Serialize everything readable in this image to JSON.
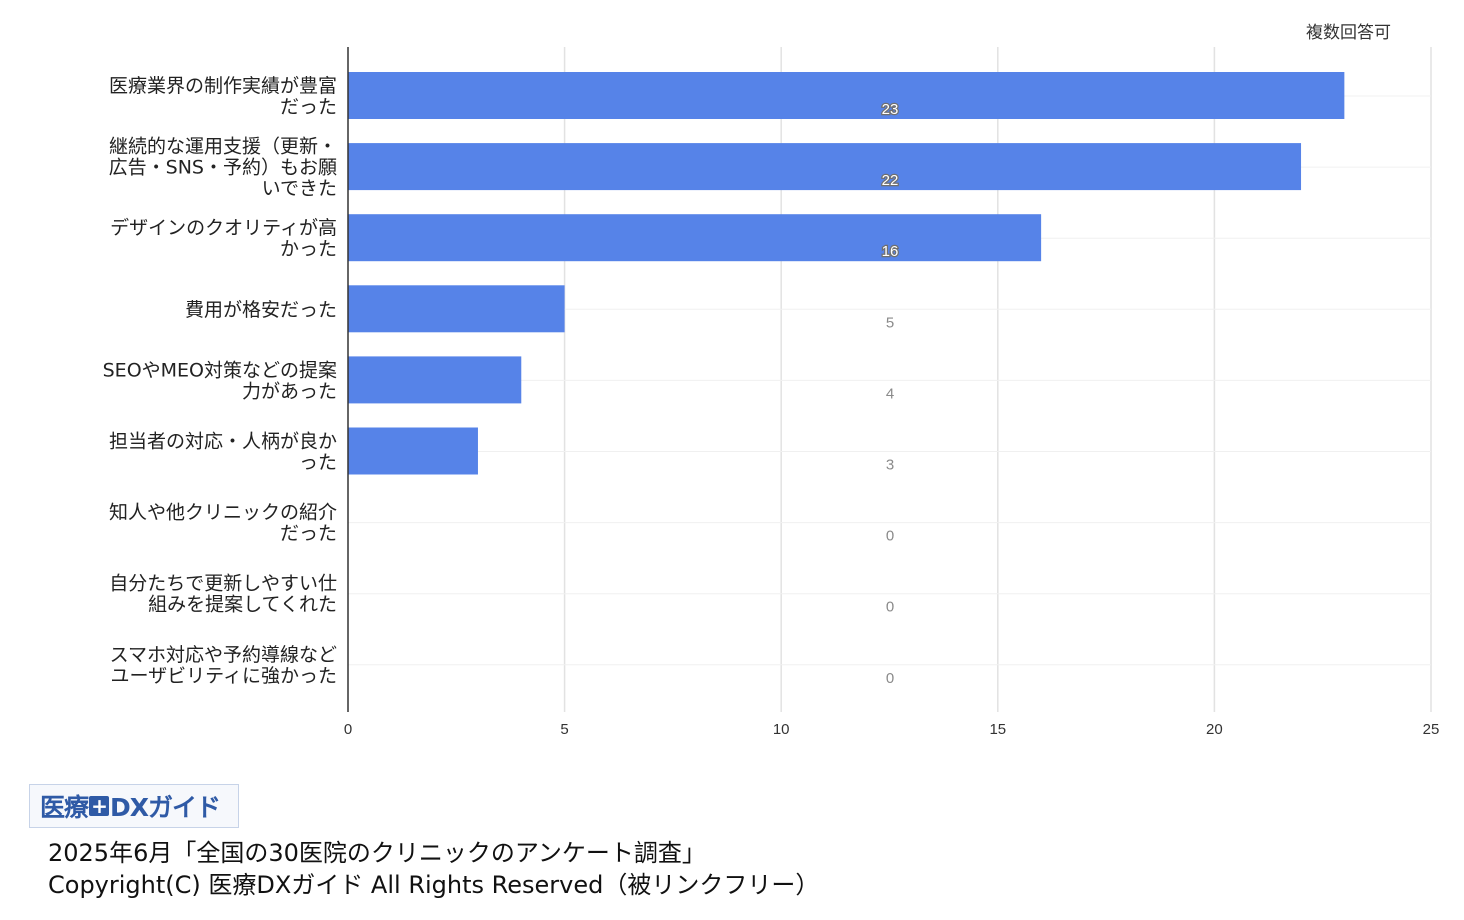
{
  "note": "複数回答可",
  "logo": {
    "part1": "医療",
    "plus": "+",
    "part2": "DXガイド"
  },
  "footer": {
    "survey": "2025年6月「全国の30医院のクリニックのアンケート調査」",
    "copyright": "Copyright(C) 医療DXガイド All Rights Reserved（被リンクフリー）"
  },
  "colors": {
    "bar": "#5683e8",
    "grid": "#e2e2e2",
    "axis": "#333333",
    "value_label_inside": "#ffffff",
    "value_label_outside": "#8a8a8a"
  },
  "chart_data": {
    "type": "bar",
    "orientation": "horizontal",
    "categories": [
      [
        "医療業界の制作実績が豊富",
        "だった"
      ],
      [
        "継続的な運用支援（更新・",
        "広告・SNS・予約）もお願",
        "いできた"
      ],
      [
        "デザインのクオリティが高",
        "かった"
      ],
      [
        "費用が格安だった"
      ],
      [
        "SEOやMEO対策などの提案",
        "力があった"
      ],
      [
        "担当者の対応・人柄が良か",
        "った"
      ],
      [
        "知人や他クリニックの紹介",
        "だった"
      ],
      [
        "自分たちで更新しやすい仕",
        "組みを提案してくれた"
      ],
      [
        "スマホ対応や予約導線など",
        "ユーザビリティに強かった"
      ]
    ],
    "values": [
      23,
      22,
      16,
      5,
      4,
      3,
      0,
      0,
      0
    ],
    "data_labels": [
      "23",
      "22",
      "16",
      "5",
      "4",
      "3",
      "0",
      "0",
      "0"
    ],
    "xlim": [
      0,
      25
    ],
    "x_ticks": [
      "0",
      "5",
      "10",
      "15",
      "20",
      "25"
    ],
    "grid": true
  }
}
